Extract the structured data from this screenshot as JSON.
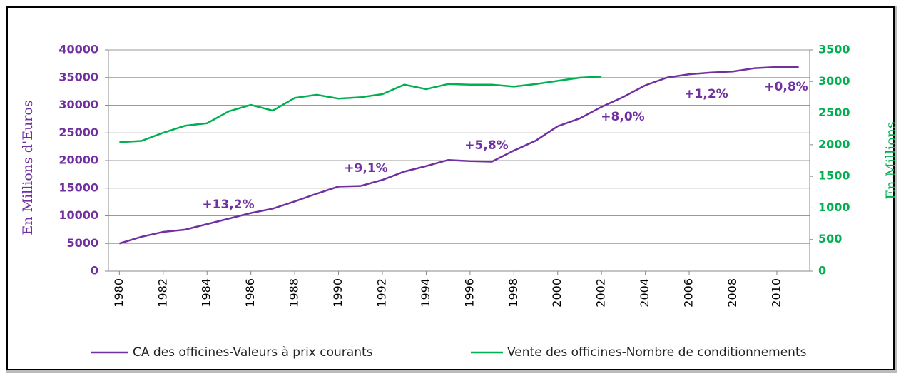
{
  "chart_data": {
    "type": "line",
    "x": [
      1980,
      1981,
      1982,
      1983,
      1984,
      1985,
      1986,
      1987,
      1988,
      1989,
      1990,
      1991,
      1992,
      1993,
      1994,
      1995,
      1996,
      1997,
      1998,
      1999,
      2000,
      2001,
      2002,
      2003,
      2004,
      2005,
      2006,
      2007,
      2008,
      2009,
      2010,
      2011
    ],
    "xlim": [
      1979.5,
      2011.5
    ],
    "xticks": [
      1980,
      1982,
      1984,
      1986,
      1988,
      1990,
      1992,
      1994,
      1996,
      1998,
      2000,
      2002,
      2004,
      2006,
      2008,
      2010
    ],
    "ylabel": "En Millions d'Euros",
    "y2label": "En Millions",
    "ylim": [
      0,
      40000
    ],
    "yticks": [
      0,
      5000,
      10000,
      15000,
      20000,
      25000,
      30000,
      35000,
      40000
    ],
    "y2lim": [
      0,
      3500
    ],
    "y2ticks": [
      0,
      500,
      1000,
      1500,
      2000,
      2500,
      3000,
      3500
    ],
    "grid": true,
    "legend": "bottom",
    "series": [
      {
        "name": "CA des officines-Valeurs à prix courants",
        "color": "#7030a0",
        "values": [
          5000,
          6200,
          7100,
          7500,
          8500,
          9500,
          10500,
          11300,
          12600,
          14000,
          15300,
          15400,
          16500,
          18000,
          19000,
          20100,
          19900,
          19800,
          21800,
          23600,
          26200,
          27600,
          29700,
          31500,
          33600,
          35000,
          35600,
          35900,
          36100,
          36700,
          36900,
          36900
        ]
      },
      {
        "name": "Vente des officines-Nombre de conditionnements",
        "color": "#00b050",
        "axis": "y2",
        "values": [
          2040,
          2060,
          2190,
          2300,
          2340,
          2530,
          2630,
          2540,
          2740,
          2790,
          2730,
          2750,
          2800,
          2950,
          2880,
          2960,
          2950,
          2950,
          2920,
          2960,
          3010,
          3060,
          3080,
          null,
          null,
          null,
          null,
          null,
          null,
          null,
          null,
          null
        ]
      }
    ],
    "annotations": [
      "+13,2%",
      "+9,1%",
      "+5,8%",
      "+8,0%",
      "+1,2%",
      "+0,8%"
    ]
  }
}
